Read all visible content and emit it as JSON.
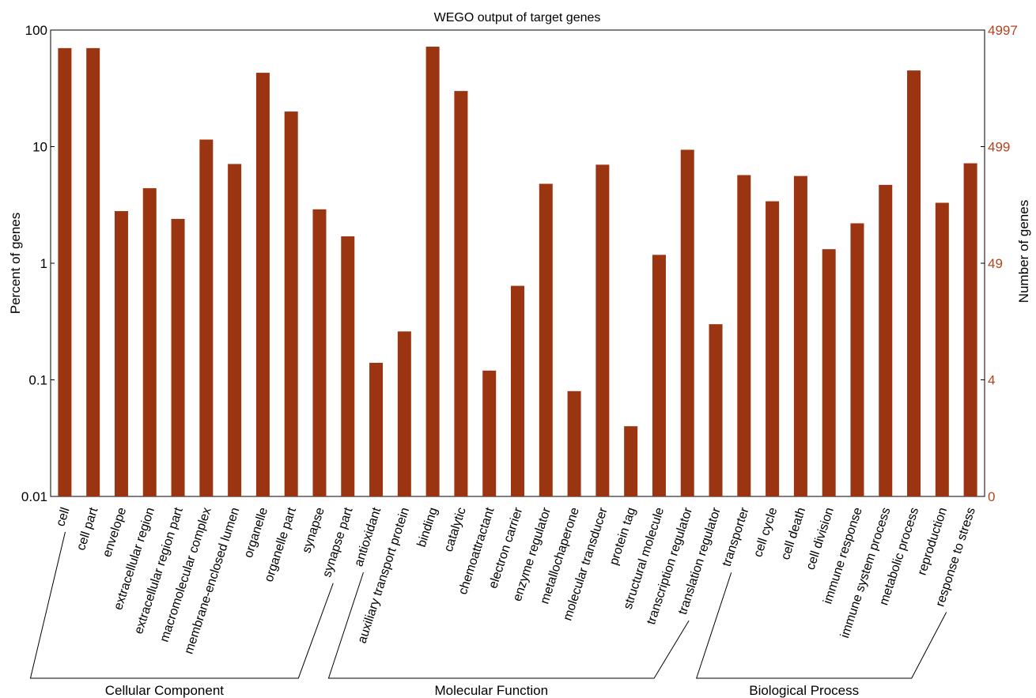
{
  "chart_data": {
    "type": "bar",
    "title": "WEGO output of target genes",
    "ylabel": "Percent of genes",
    "y2label": "Number of genes",
    "yscale": "log",
    "ylim": [
      0.01,
      100
    ],
    "y_ticks": [
      "100",
      "10",
      "1",
      "0.1",
      "0.01"
    ],
    "y2_ticks": [
      "4997",
      "499",
      "49",
      "4",
      "0"
    ],
    "grid": false,
    "categories": [
      "cell",
      "cell part",
      "envelope",
      "extracellular region",
      "extracellular region part",
      "macromolecular complex",
      "membrane-enclosed lumen",
      "organelle",
      "organelle part",
      "synapse",
      "synapse part",
      "antioxidant",
      "auxiliary transport protein",
      "binding",
      "catalytic",
      "chemoattractant",
      "electron carrier",
      "enzyme regulator",
      "metallochaperone",
      "molecular transducer",
      "protein tag",
      "structural molecule",
      "transcription regulator",
      "translation regulator",
      "transporter",
      "cell cycle",
      "cell death",
      "cell division",
      "immune response",
      "immune system process",
      "metabolic process",
      "reproduction",
      "response to stress"
    ],
    "values": [
      70,
      70,
      2.8,
      4.4,
      2.4,
      11.5,
      7.1,
      43,
      20,
      2.9,
      1.7,
      0.14,
      0.26,
      72,
      30,
      0.12,
      0.64,
      4.8,
      0.08,
      7.0,
      0.04,
      1.18,
      9.4,
      0.3,
      5.7,
      3.4,
      5.6,
      1.32,
      2.2,
      4.7,
      45,
      3.3,
      7.2
    ],
    "groups": [
      {
        "name": "Cellular Component",
        "start": 0,
        "end": 10
      },
      {
        "name": "Molecular Function",
        "start": 11,
        "end": 23
      },
      {
        "name": "Biological Process",
        "start": 24,
        "end": 32
      }
    ],
    "colors": {
      "bar": "#9b3511",
      "right_axis": "#b3441d"
    }
  }
}
